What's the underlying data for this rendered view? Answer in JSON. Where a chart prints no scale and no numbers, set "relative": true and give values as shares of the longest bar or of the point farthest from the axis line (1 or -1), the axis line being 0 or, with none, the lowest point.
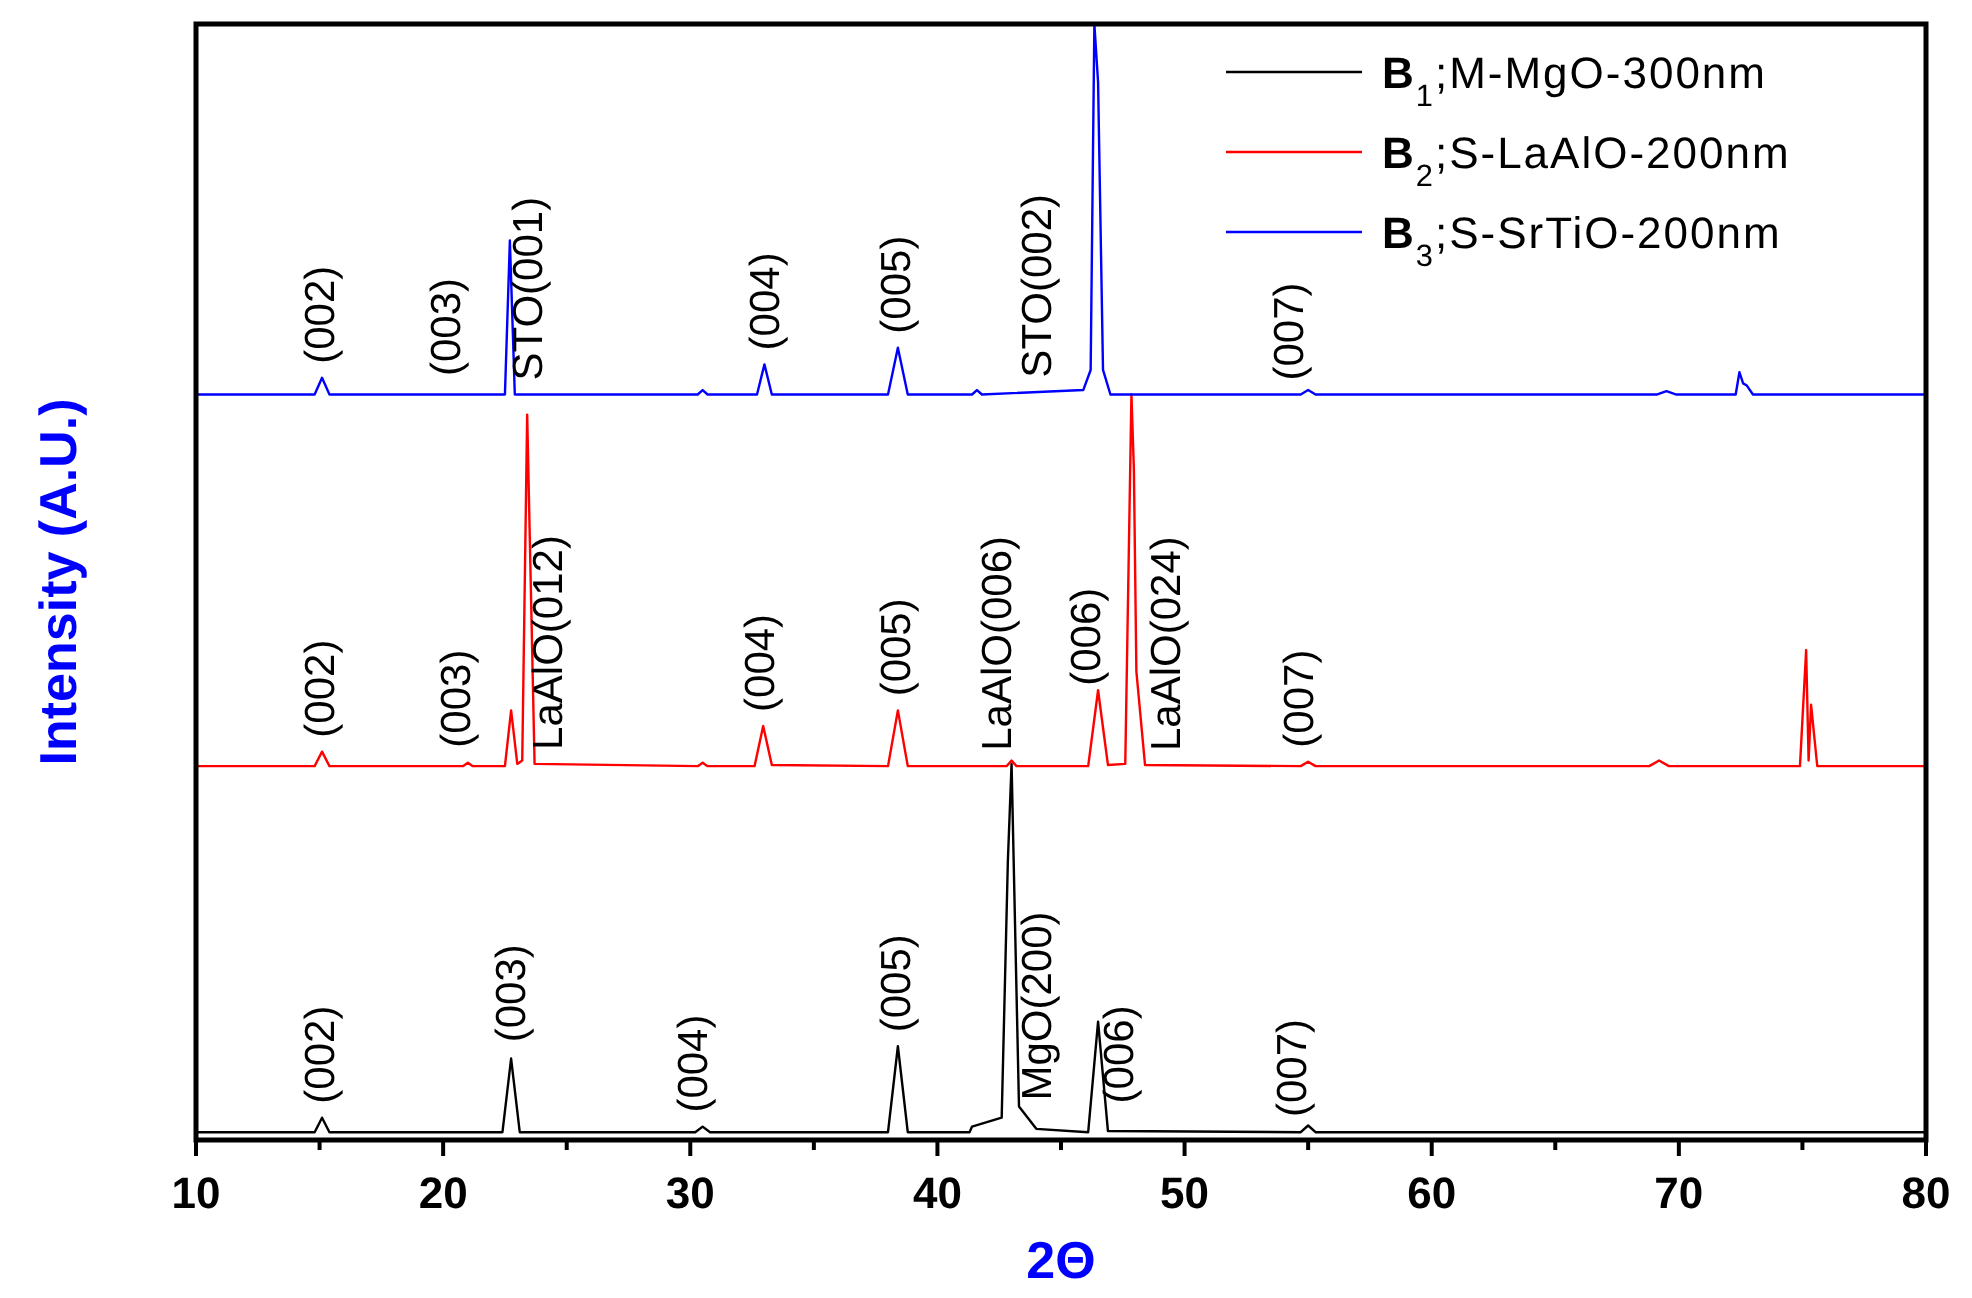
{
  "chart_data": {
    "type": "line",
    "relative": true,
    "xlabel": "2Θ",
    "ylabel": "Intensity (A.U.)",
    "xlim": [
      10,
      80
    ],
    "xticks": [
      10,
      {
        "value": 15,
        "label": null
      },
      20,
      {
        "value": 25,
        "label": null
      },
      30,
      {
        "value": 35,
        "label": null
      },
      40,
      {
        "value": 45,
        "label": null
      },
      50,
      {
        "value": 55,
        "label": null
      },
      60,
      {
        "value": 65,
        "label": null
      },
      70,
      {
        "value": 75,
        "label": null
      },
      80
    ],
    "tick_labels": "x",
    "legend": "top right",
    "marker": "none",
    "line_style": "solid",
    "grid": false,
    "series": [
      {
        "name": "B$_{1}$;M-MgO-300nm",
        "color": "#000000",
        "x": [
          10,
          14.8,
          15.1,
          15.4,
          22.4,
          22.75,
          23.1,
          30.2,
          30.5,
          30.8,
          38.0,
          38.4,
          38.8,
          41.3,
          41.4,
          42.6,
          42.85,
          43.0,
          43.3,
          44,
          46.1,
          46.5,
          46.9,
          54.7,
          55.0,
          55.3,
          80
        ],
        "values": [
          0.007,
          0.007,
          0.02,
          0.007,
          0.007,
          0.073,
          0.007,
          0.007,
          0.012,
          0.007,
          0.007,
          0.084,
          0.007,
          0.007,
          0.012,
          0.02,
          0.25,
          0.337,
          0.03,
          0.01,
          0.007,
          0.106,
          0.008,
          0.007,
          0.013,
          0.007,
          0.007
        ]
      },
      {
        "name": "B$_{2}$;S-LaAlO-200nm",
        "color": "#ff0000",
        "x": [
          10,
          14.8,
          15.1,
          15.4,
          20.8,
          21.0,
          21.2,
          22.5,
          22.75,
          23.0,
          23.2,
          23.4,
          23.7,
          30.3,
          30.5,
          30.7,
          32.6,
          32.95,
          33.3,
          38.0,
          38.4,
          38.8,
          42.8,
          43.0,
          43.2,
          46.1,
          46.5,
          46.9,
          47.6,
          47.85,
          47.95,
          48.05,
          48.4,
          54.7,
          55.0,
          55.3,
          68.8,
          69.2,
          69.6,
          74.9,
          75.15,
          75.25,
          75.35,
          75.6,
          80
        ],
        "values": [
          0.335,
          0.335,
          0.348,
          0.335,
          0.335,
          0.338,
          0.335,
          0.335,
          0.385,
          0.337,
          0.34,
          0.65,
          0.337,
          0.335,
          0.338,
          0.335,
          0.335,
          0.371,
          0.336,
          0.335,
          0.385,
          0.335,
          0.335,
          0.34,
          0.335,
          0.335,
          0.403,
          0.336,
          0.337,
          0.668,
          0.6,
          0.42,
          0.336,
          0.335,
          0.339,
          0.335,
          0.335,
          0.34,
          0.335,
          0.335,
          0.439,
          0.34,
          0.39,
          0.335,
          0.335
        ]
      },
      {
        "name": "B$_{3}$;S-SrTiO-200nm",
        "color": "#0000ff",
        "x": [
          10,
          14.8,
          15.1,
          15.4,
          22.5,
          22.7,
          22.9,
          30.3,
          30.5,
          30.7,
          32.7,
          33.0,
          33.3,
          38.0,
          38.4,
          38.8,
          41.4,
          41.6,
          41.8,
          45.9,
          46.2,
          46.35,
          46.5,
          46.7,
          47.0,
          54.7,
          55.0,
          55.3,
          69.1,
          69.5,
          69.9,
          72.3,
          72.45,
          72.6,
          72.75,
          73.0,
          80
        ],
        "values": [
          0.668,
          0.668,
          0.683,
          0.668,
          0.668,
          0.806,
          0.668,
          0.668,
          0.672,
          0.668,
          0.668,
          0.695,
          0.668,
          0.668,
          0.71,
          0.668,
          0.668,
          0.672,
          0.668,
          0.672,
          0.69,
          1,
          0.948,
          0.69,
          0.668,
          0.668,
          0.672,
          0.668,
          0.668,
          0.671,
          0.668,
          0.668,
          0.688,
          0.678,
          0.676,
          0.668,
          0.668
        ]
      }
    ],
    "annotations": [
      {
        "text": "(002)",
        "x": 15.0,
        "y": 0.672
      },
      {
        "text": "(003)",
        "x": 20.1,
        "y": 0.672
      },
      {
        "text": "STO(001)",
        "x": 23.4,
        "y": 0.668
      },
      {
        "text": "(004)",
        "x": 33.0,
        "y": 0.695
      },
      {
        "text": "(005)",
        "x": 38.3,
        "y": 0.708
      },
      {
        "text": "STO(002)",
        "x": 44.0,
        "y": 0.67
      },
      {
        "text": "(007)",
        "x": 54.2,
        "y": 0.668
      },
      {
        "text": "(002)",
        "x": 15.0,
        "y": 0.348
      },
      {
        "text": "(003)",
        "x": 20.5,
        "y": 0.339
      },
      {
        "text": "LaAlO(012)",
        "x": 24.2,
        "y": 0.337
      },
      {
        "text": "(004)",
        "x": 32.8,
        "y": 0.358
      },
      {
        "text": "(005)",
        "x": 38.3,
        "y": 0.385
      },
      {
        "text": "LaAlO(006)",
        "x": 42.4,
        "y": 0.335
      },
      {
        "text": "(006)",
        "x": 46.0,
        "y": 0.335
      },
      {
        "text": "LaAlO(024)",
        "x": 49.2,
        "y": 0.336
      },
      {
        "text": "(007)",
        "x": 54.6,
        "y": 0.335
      },
      {
        "text": "(002)",
        "x": 15.0,
        "y": 0.018
      },
      {
        "text": "(003)",
        "x": 22.7,
        "y": 0.075
      },
      {
        "text": "(004)",
        "x": 30.1,
        "y": 0.009
      },
      {
        "text": "(005)",
        "x": 38.3,
        "y": 0.084
      },
      {
        "text": "MgO(200)",
        "x": 44.0,
        "y": 0.01
      },
      {
        "text": "(006)",
        "x": 47.3,
        "y": 0.008
      },
      {
        "text": "(007)",
        "x": 54.3,
        "y": 0.007
      }
    ]
  }
}
